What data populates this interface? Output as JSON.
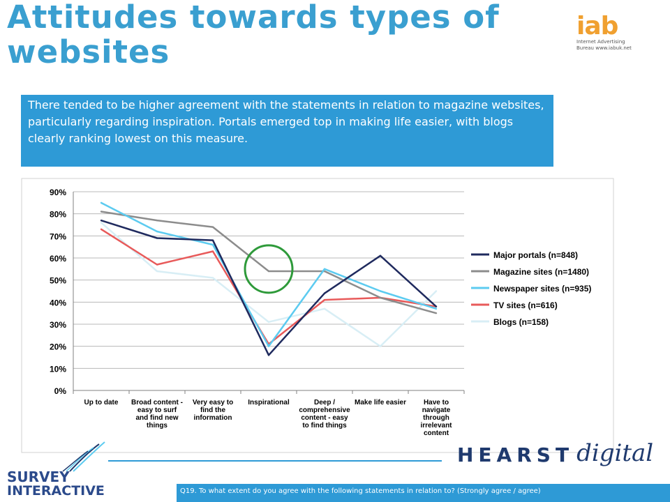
{
  "header": {
    "title": "Attitudes towards types of websites"
  },
  "logos": {
    "iab_mark": "iab",
    "iab_line1": "Internet Advertising",
    "iab_line2": "Bureau www.iabuk.net",
    "hearst_word": "HEARST",
    "hearst_digital": "digital",
    "survey_line1": "SURVEY",
    "survey_line2": "INTERACTIVE"
  },
  "callout": {
    "text": "There tended to be higher agreement with the statements in relation to magazine websites, particularly regarding inspiration. Portals emerged top in making life easier, with blogs clearly ranking lowest on this measure."
  },
  "footer": {
    "question": "Q19. To what extent do you agree with the following statements in relation to? (Strongly agree / agree)"
  },
  "chart_data": {
    "type": "line",
    "categories": [
      [
        "Up to date"
      ],
      [
        "Broad content -",
        "easy to surf",
        "and find new",
        "things"
      ],
      [
        "Very easy to",
        "find the",
        "information"
      ],
      [
        "Inspirational"
      ],
      [
        "Deep /",
        "comprehensive",
        "content - easy",
        "to find things"
      ],
      [
        "Make life easier"
      ],
      [
        "Have to",
        "navigate",
        "through",
        "irrelevant",
        "content"
      ]
    ],
    "ylim": [
      0,
      90
    ],
    "yticks": [
      "0%",
      "10%",
      "20%",
      "30%",
      "40%",
      "50%",
      "60%",
      "70%",
      "80%",
      "90%"
    ],
    "grid": true,
    "legend_position": "right",
    "series": [
      {
        "name": "Major portals (n=848)",
        "color": "#1f2a5e",
        "values": [
          77,
          69,
          68,
          16,
          44,
          61,
          38
        ]
      },
      {
        "name": "Magazine sites (n=1480)",
        "color": "#8c8c8c",
        "values": [
          81,
          77,
          74,
          54,
          54,
          42,
          35
        ]
      },
      {
        "name": "Newspaper sites (n=935)",
        "color": "#5ccbf0",
        "values": [
          85,
          72,
          66,
          20,
          55,
          45,
          37
        ]
      },
      {
        "name": "TV sites (n=616)",
        "color": "#e85a5a",
        "values": [
          73,
          57,
          63,
          21,
          41,
          42,
          38
        ]
      },
      {
        "name": "Blogs (n=158)",
        "color": "#d8eef5",
        "values": [
          76,
          54,
          51,
          31,
          37,
          20,
          45
        ]
      }
    ],
    "highlight": {
      "category_index": 3,
      "value": 55,
      "color": "#2e9a3a"
    }
  }
}
